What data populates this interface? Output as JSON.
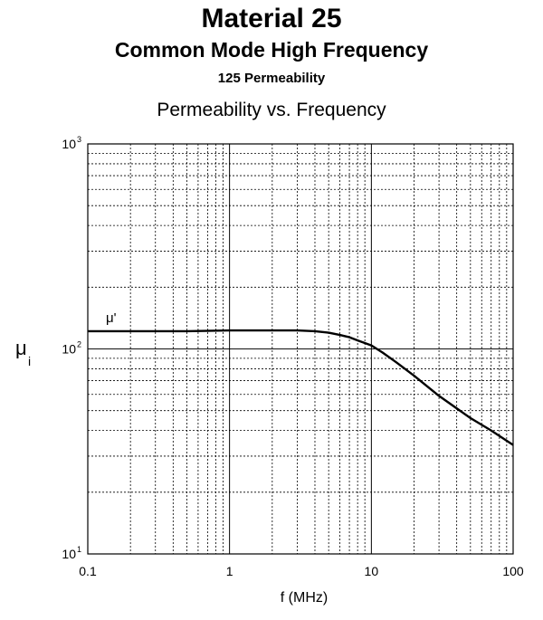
{
  "header": {
    "title": "Material 25",
    "subtitle": "Common Mode High Frequency",
    "subtitle2": "125 Permeability",
    "chart_title": "Permeability vs. Frequency"
  },
  "chart_data": {
    "type": "line",
    "title": "Permeability vs. Frequency",
    "xlabel": "f (MHz)",
    "ylabel": "μi",
    "x_scale": "log",
    "y_scale": "log",
    "xlim": [
      0.1,
      100
    ],
    "ylim": [
      10,
      1000
    ],
    "grid": true,
    "x_ticks": [
      "0.1",
      "1",
      "10",
      "100"
    ],
    "y_ticks": [
      {
        "base": "10",
        "exp": "1"
      },
      {
        "base": "10",
        "exp": "2"
      },
      {
        "base": "10",
        "exp": "3"
      }
    ],
    "series": [
      {
        "name": "μ'",
        "x": [
          0.1,
          0.2,
          0.5,
          1,
          2,
          3,
          4,
          5,
          6,
          7,
          8,
          10,
          12,
          15,
          20,
          30,
          50,
          70,
          100
        ],
        "values": [
          122,
          122,
          122,
          123,
          123,
          123,
          122,
          120,
          117,
          114,
          110,
          104,
          96,
          86,
          74,
          59,
          46,
          40,
          34
        ]
      }
    ]
  }
}
